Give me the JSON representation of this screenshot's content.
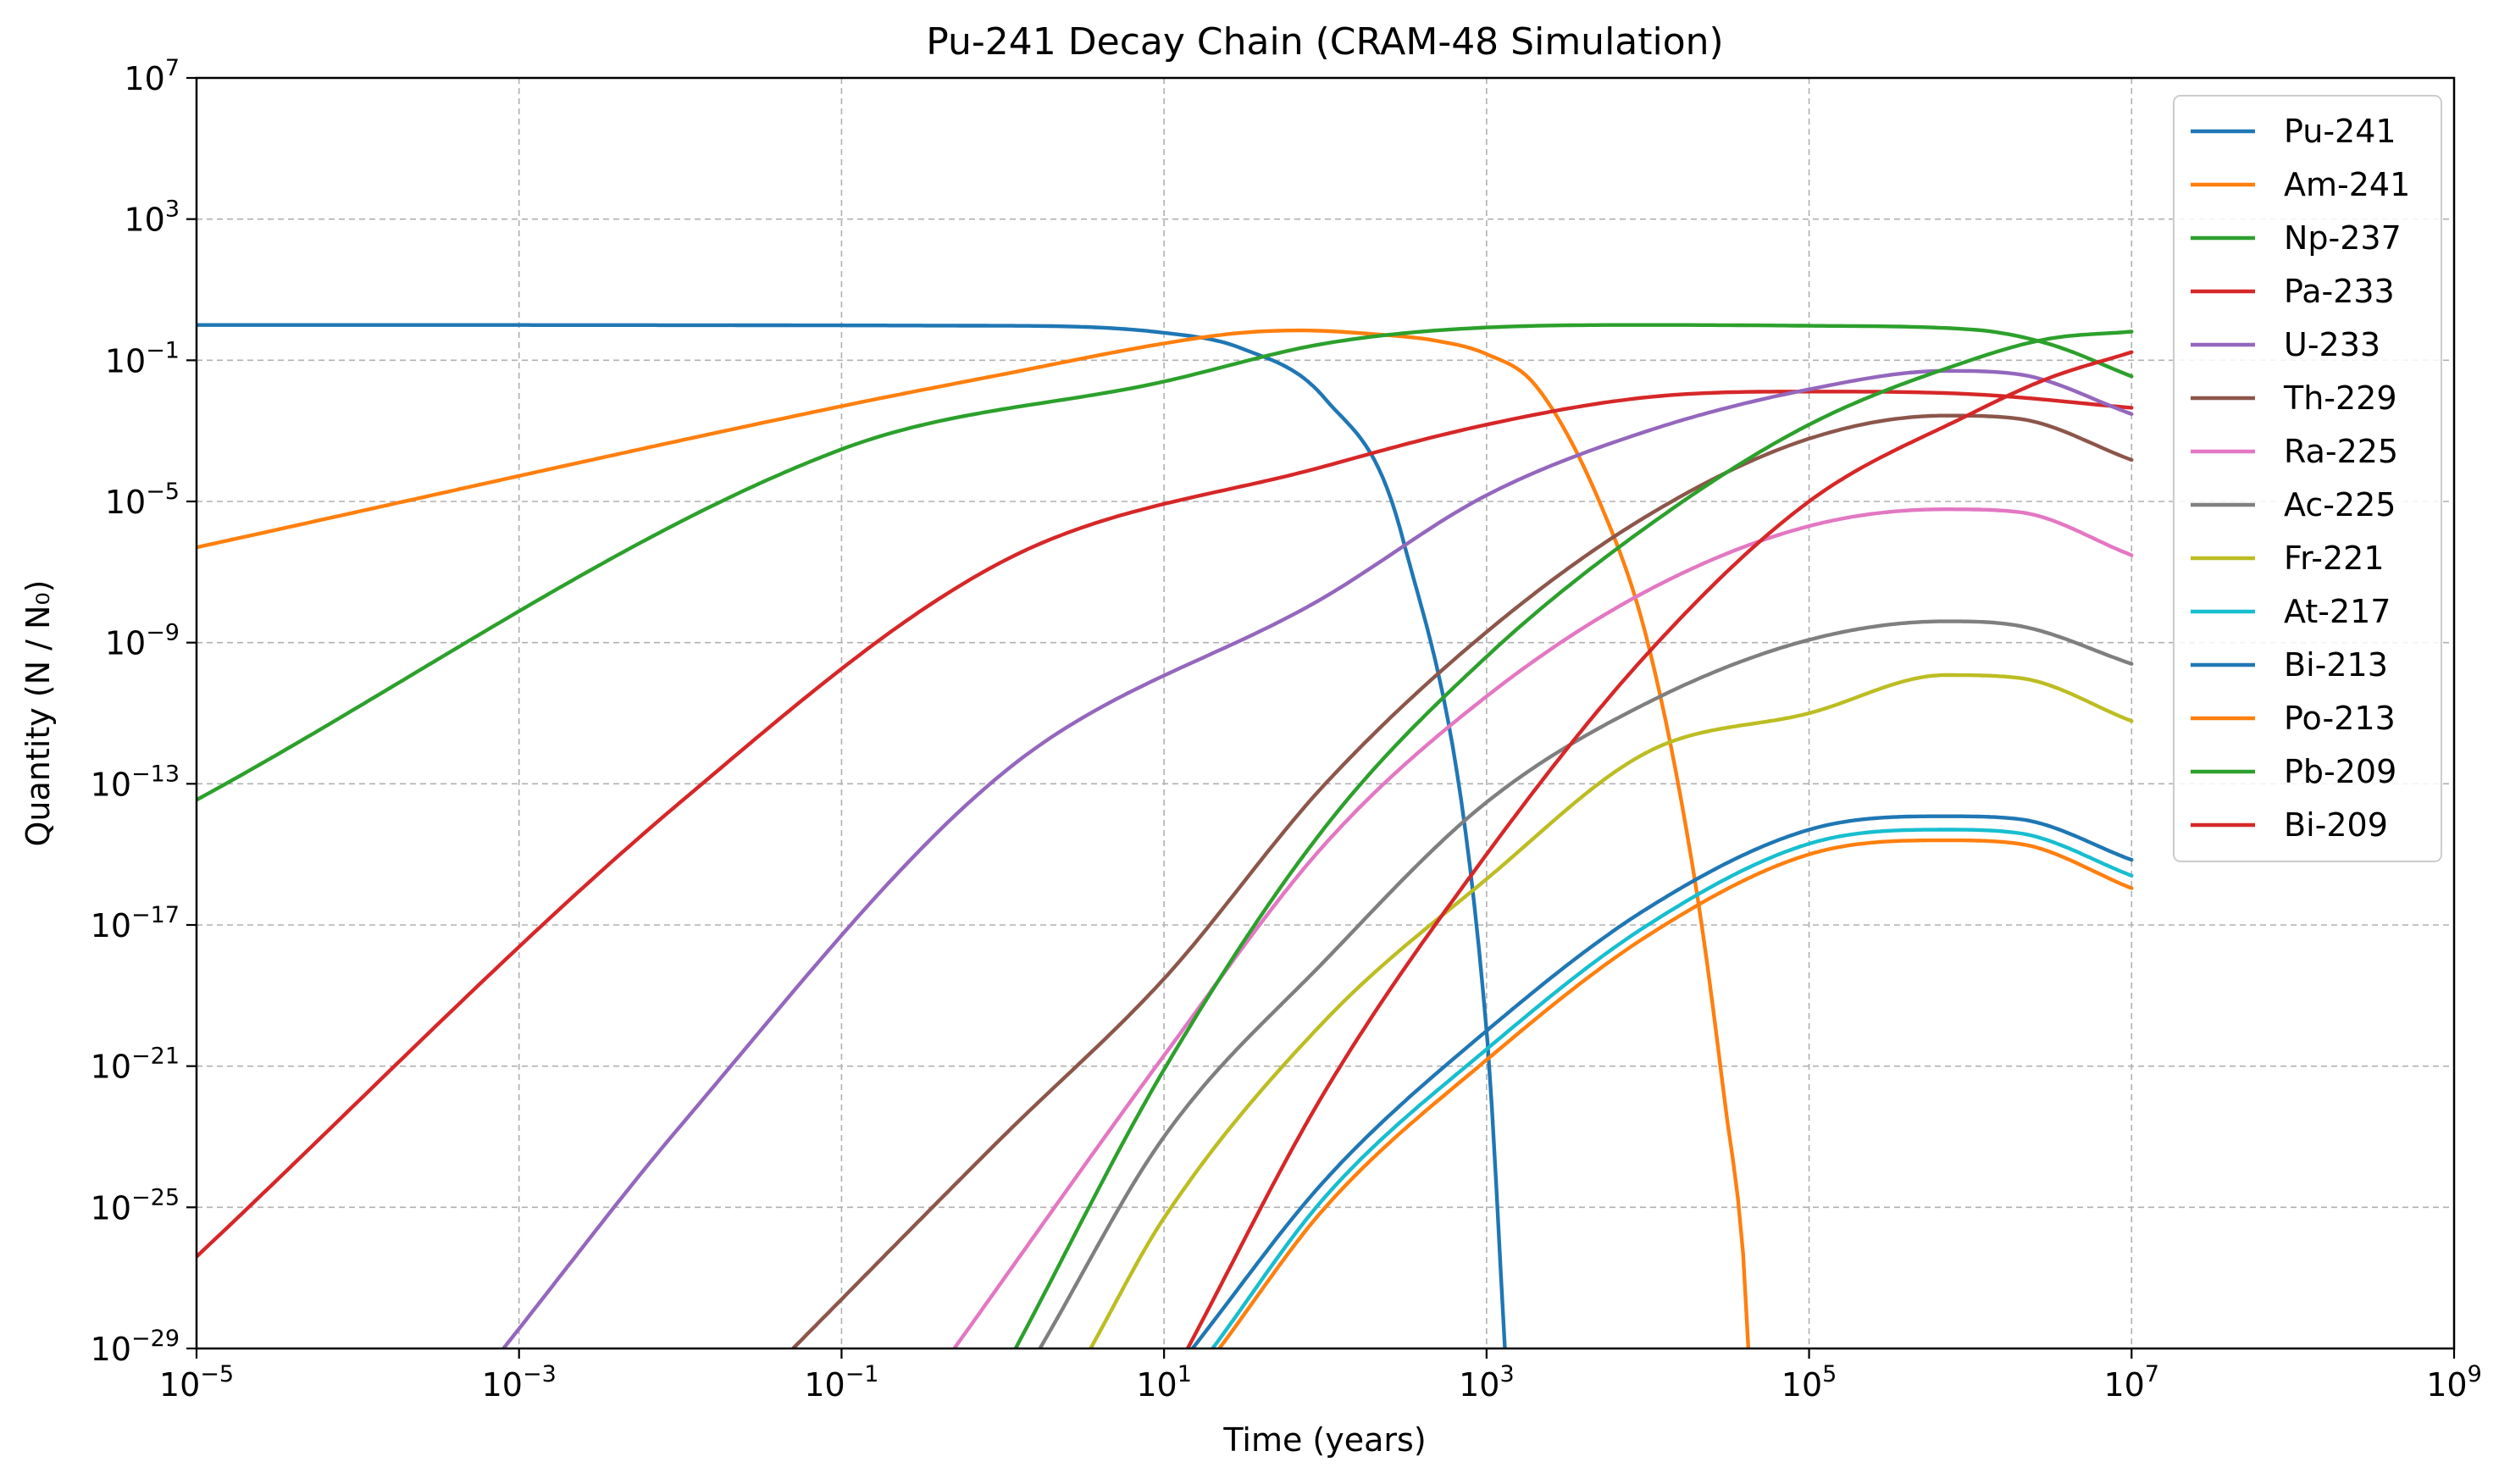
{
  "chart_data": {
    "type": "line",
    "title": "Pu-241 Decay Chain (CRAM-48 Simulation)",
    "xlabel": "Time (years)",
    "ylabel": "Quantity (N / N₀)",
    "xscale": "log",
    "yscale": "log",
    "xlim": [
      1e-05,
      1000000000.0
    ],
    "ylim": [
      1e-29,
      10000000.0
    ],
    "x_tick_exponents": [
      -5,
      -3,
      -1,
      1,
      3,
      5,
      7,
      9
    ],
    "y_tick_exponents": [
      -29,
      -25,
      -21,
      -17,
      -13,
      -9,
      -5,
      -1,
      3,
      7
    ],
    "tick_base": "10",
    "grid": true,
    "legend_position": "top-right",
    "series": [
      {
        "name": "Pu-241",
        "color": "#1f77b4",
        "points": [
          [
            1e-05,
            1
          ],
          [
            1,
            0.95
          ],
          [
            10,
            0.6
          ],
          [
            30,
            0.22
          ],
          [
            100,
            0.008
          ],
          [
            300,
            1e-06
          ],
          [
            1000,
            1e-20
          ],
          [
            1300,
            1e-29
          ]
        ]
      },
      {
        "name": "Am-241",
        "color": "#ff7f0e",
        "points": [
          [
            1e-05,
            5e-07
          ],
          [
            0.1,
            0.005
          ],
          [
            1,
            0.04
          ],
          [
            10,
            0.3
          ],
          [
            30,
            0.6
          ],
          [
            70,
            0.7
          ],
          [
            200,
            0.55
          ],
          [
            500,
            0.35
          ],
          [
            1000,
            0.15
          ],
          [
            2000,
            0.02
          ],
          [
            5000,
            1e-05
          ],
          [
            10000,
            1e-09
          ],
          [
            20000,
            1e-16
          ],
          [
            30000,
            1e-22
          ],
          [
            40000,
            1e-27
          ],
          [
            42000,
            1e-29
          ]
        ]
      },
      {
        "name": "Np-237",
        "color": "#2ca02c",
        "points": [
          [
            1e-05,
            3.5e-14
          ],
          [
            0.1,
            0.0003
          ],
          [
            10,
            0.025
          ],
          [
            100,
            0.3
          ],
          [
            1000,
            0.85
          ],
          [
            10000.0,
            1
          ],
          [
            100000.0,
            0.95
          ],
          [
            1000000.0,
            0.75
          ],
          [
            3000000.0,
            0.3
          ],
          [
            10000000.0,
            0.035
          ]
        ]
      },
      {
        "name": "Pa-233",
        "color": "#d62728",
        "points": [
          [
            1e-05,
            4e-27
          ],
          [
            0.01,
            3e-14
          ],
          [
            1,
            2e-07
          ],
          [
            100,
            0.0001
          ],
          [
            1000,
            0.0015
          ],
          [
            10000.0,
            0.009
          ],
          [
            100000.0,
            0.013
          ],
          [
            1000000.0,
            0.011
          ],
          [
            10000000.0,
            0.0045
          ]
        ]
      },
      {
        "name": "U-233",
        "color": "#9467bd",
        "points": [
          [
            0.0008,
            1e-29
          ],
          [
            0.01,
            2e-23
          ],
          [
            1,
            2e-13
          ],
          [
            100,
            2e-08
          ],
          [
            1000,
            1.5e-05
          ],
          [
            10000.0,
            0.001
          ],
          [
            100000.0,
            0.015
          ],
          [
            700000.0,
            0.05
          ],
          [
            2000000.0,
            0.04
          ],
          [
            10000000.0,
            0.003
          ]
        ]
      },
      {
        "name": "Th-229",
        "color": "#8c564b",
        "points": [
          [
            0.05,
            1e-29
          ],
          [
            1,
            1e-23
          ],
          [
            10,
            3e-19
          ],
          [
            100,
            1e-13
          ],
          [
            1000,
            2e-09
          ],
          [
            10000.0,
            4e-06
          ],
          [
            100000.0,
            0.0006
          ],
          [
            700000.0,
            0.0027
          ],
          [
            2000000.0,
            0.0022
          ],
          [
            10000000.0,
            0.00015
          ]
        ]
      },
      {
        "name": "Ra-225",
        "color": "#e377c2",
        "points": [
          [
            0.5,
            1e-29
          ],
          [
            10,
            2e-21
          ],
          [
            100,
            2e-15
          ],
          [
            1000,
            3e-11
          ],
          [
            10000.0,
            3e-08
          ],
          [
            100000.0,
            2e-06
          ],
          [
            700000.0,
            6e-06
          ],
          [
            2000000.0,
            5e-06
          ],
          [
            10000000.0,
            3e-07
          ]
        ]
      },
      {
        "name": "Ac-225",
        "color": "#7f7f7f",
        "points": [
          [
            1.7,
            1e-29
          ],
          [
            10,
            1e-23
          ],
          [
            100,
            1e-18
          ],
          [
            1000,
            3e-14
          ],
          [
            10000.0,
            2e-11
          ],
          [
            100000.0,
            1.2e-09
          ],
          [
            700000.0,
            4e-09
          ],
          [
            2000000.0,
            3e-09
          ],
          [
            10000000.0,
            2.5e-10
          ]
        ]
      },
      {
        "name": "Fr-221",
        "color": "#bcbd22",
        "points": [
          [
            3.5,
            1e-29
          ],
          [
            10,
            5e-26
          ],
          [
            100,
            2e-20
          ],
          [
            1000,
            2e-16
          ],
          [
            10000.0,
            8e-13
          ],
          [
            100000.0,
            1e-11
          ],
          [
            700000.0,
            1.2e-10
          ],
          [
            2000000.0,
            1e-10
          ],
          [
            10000000.0,
            6e-12
          ]
        ]
      },
      {
        "name": "At-217",
        "color": "#17becf",
        "points": [
          [
            20,
            1e-29
          ],
          [
            100,
            2e-25
          ],
          [
            1000,
            3e-21
          ],
          [
            10000.0,
            1e-17
          ],
          [
            100000.0,
            2e-15
          ],
          [
            700000.0,
            5e-15
          ],
          [
            2000000.0,
            4e-15
          ],
          [
            10000000.0,
            2.5e-16
          ]
        ]
      },
      {
        "name": "Bi-213",
        "color": "#1f77b4",
        "points": [
          [
            15,
            1e-29
          ],
          [
            100,
            6e-25
          ],
          [
            1000,
            1e-20
          ],
          [
            10000.0,
            3e-17
          ],
          [
            100000.0,
            5e-15
          ],
          [
            700000.0,
            1.2e-14
          ],
          [
            2000000.0,
            1e-14
          ],
          [
            10000000.0,
            7e-16
          ]
        ]
      },
      {
        "name": "Po-213",
        "color": "#ff7f0e",
        "points": [
          [
            22,
            1e-29
          ],
          [
            100,
            1e-25
          ],
          [
            1000,
            1.5e-21
          ],
          [
            10000.0,
            5e-18
          ],
          [
            100000.0,
            1e-15
          ],
          [
            700000.0,
            2.5e-15
          ],
          [
            2000000.0,
            2e-15
          ],
          [
            10000000.0,
            1.1e-16
          ]
        ]
      },
      {
        "name": "Pb-209",
        "color": "#2ca02c",
        "points": [
          [
            1.2,
            1e-29
          ],
          [
            10,
            8e-22
          ],
          [
            100,
            6e-15
          ],
          [
            1000,
            4e-10
          ],
          [
            10000.0,
            2e-06
          ],
          [
            100000.0,
            0.0015
          ],
          [
            1000000.0,
            0.1
          ],
          [
            3000000.0,
            0.4
          ],
          [
            10000000.0,
            0.65
          ]
        ]
      },
      {
        "name": "Bi-209",
        "color": "#d62728",
        "points": [
          [
            14,
            1e-29
          ],
          [
            100,
            2e-22
          ],
          [
            1000,
            1e-15
          ],
          [
            10000.0,
            5e-10
          ],
          [
            100000.0,
            1e-05
          ],
          [
            1000000.0,
            0.003
          ],
          [
            3000000.0,
            0.03
          ],
          [
            10000000.0,
            0.17
          ]
        ]
      }
    ]
  }
}
